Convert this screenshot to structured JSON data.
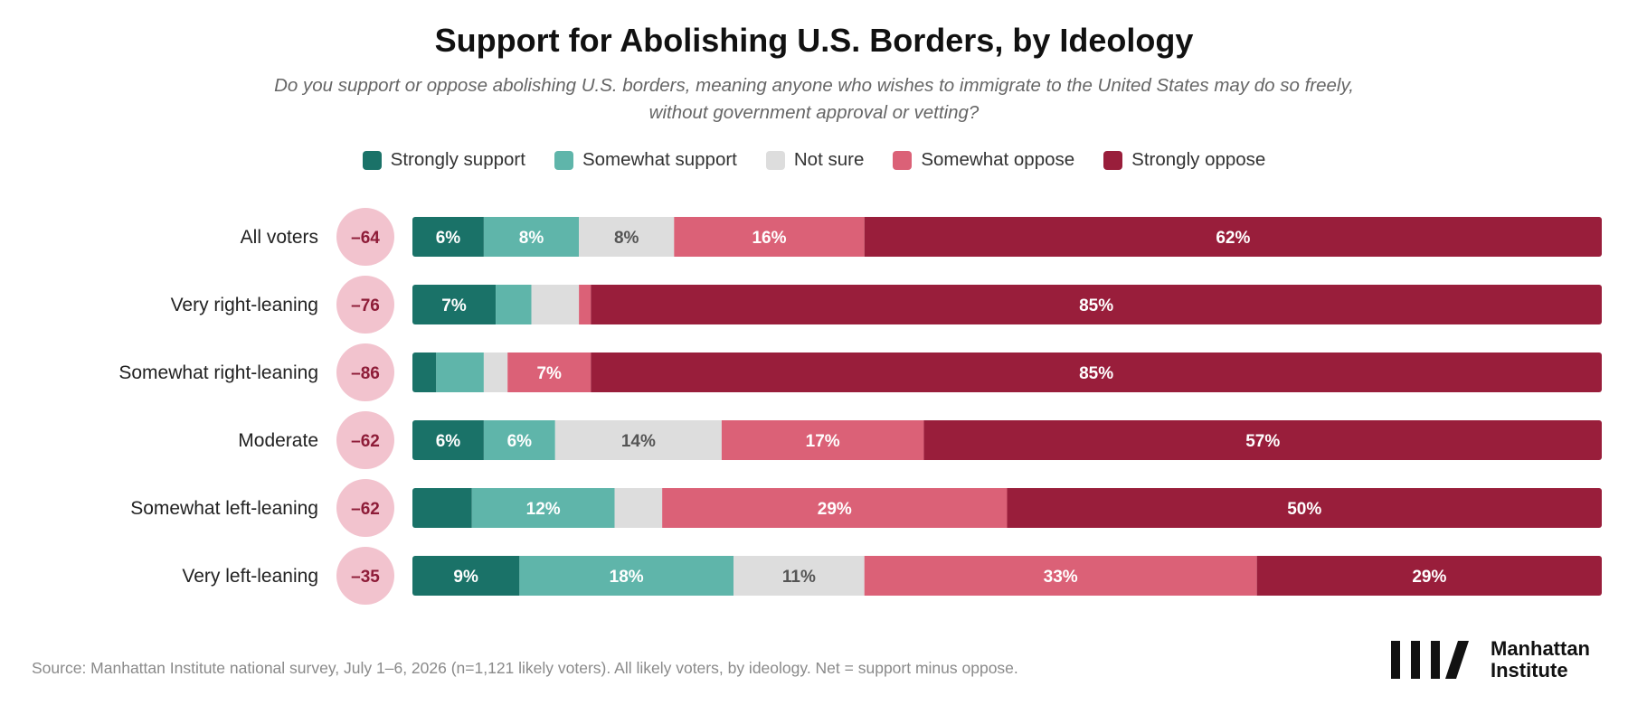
{
  "title": "Support for Abolishing U.S. Borders, by Ideology",
  "subtitle_line1": "Do you support or oppose abolishing U.S. borders, meaning anyone who wishes to immigrate to the United States may do so freely,",
  "subtitle_line2": "without government approval or vetting?",
  "source": "Source: Manhattan Institute national survey, July 1–6, 2026 (n=1,121 likely voters). All likely voters, by ideology. Net = support minus oppose.",
  "logo": {
    "line1": "Manhattan",
    "line2": "Institute",
    "icon": "four-slash-bars-icon"
  },
  "legend": [
    {
      "label": "Strongly support",
      "color": "#1a7268"
    },
    {
      "label": "Somewhat support",
      "color": "#5fb5aa"
    },
    {
      "label": "Not sure",
      "color": "#dddddd"
    },
    {
      "label": "Somewhat oppose",
      "color": "#db6177"
    },
    {
      "label": "Strongly oppose",
      "color": "#991e3b"
    }
  ],
  "chart_data": {
    "type": "bar",
    "orientation": "horizontal-stacked",
    "unit": "%",
    "categories": [
      "All voters",
      "Very right-leaning",
      "Somewhat right-leaning",
      "Moderate",
      "Somewhat left-leaning",
      "Very left-leaning"
    ],
    "net": [
      "–64",
      "–76",
      "–86",
      "–62",
      "–62",
      "–35"
    ],
    "series": [
      {
        "name": "Strongly support",
        "color": "#1a7268",
        "text_color": "#ffffff",
        "values": [
          6,
          7,
          2,
          6,
          5,
          9
        ],
        "labels": [
          "6%",
          "7%",
          "",
          "6%",
          "",
          "9%"
        ]
      },
      {
        "name": "Somewhat support",
        "color": "#5fb5aa",
        "text_color": "#ffffff",
        "values": [
          8,
          3,
          4,
          6,
          12,
          18
        ],
        "labels": [
          "8%",
          "",
          "",
          "6%",
          "12%",
          "18%"
        ]
      },
      {
        "name": "Not sure",
        "color": "#dddddd",
        "text_color": "#555555",
        "values": [
          8,
          4,
          2,
          14,
          4,
          11
        ],
        "labels": [
          "8%",
          "",
          "",
          "14%",
          "",
          "11%"
        ]
      },
      {
        "name": "Somewhat oppose",
        "color": "#db6177",
        "text_color": "#ffffff",
        "values": [
          16,
          1,
          7,
          17,
          29,
          33
        ],
        "labels": [
          "16%",
          "",
          "7%",
          "17%",
          "29%",
          "33%"
        ]
      },
      {
        "name": "Strongly oppose",
        "color": "#991e3b",
        "text_color": "#ffffff",
        "values": [
          62,
          85,
          85,
          57,
          50,
          29
        ],
        "labels": [
          "62%",
          "85%",
          "85%",
          "57%",
          "50%",
          "29%"
        ]
      }
    ],
    "legend_position": "top-center",
    "grid": false
  }
}
